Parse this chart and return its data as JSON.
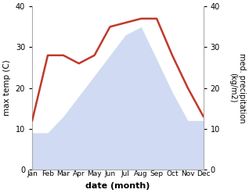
{
  "months": [
    "Jan",
    "Feb",
    "Mar",
    "Apr",
    "May",
    "Jun",
    "Jul",
    "Aug",
    "Sep",
    "Oct",
    "Nov",
    "Dec"
  ],
  "max_temp": [
    9,
    9,
    13,
    18,
    23,
    28,
    33,
    35,
    27,
    19,
    12,
    12
  ],
  "precipitation": [
    12,
    28,
    28,
    26,
    28,
    35,
    36,
    37,
    37,
    28,
    20,
    13
  ],
  "temp_fill_color": "#c8d4f0",
  "temp_fill_alpha": 0.85,
  "precip_color": "#c0392b",
  "xlabel": "date (month)",
  "ylabel_left": "max temp (C)",
  "ylabel_right": "med. precipitation\n(kg/m2)",
  "ylim": [
    0,
    40
  ],
  "yticks": [
    0,
    10,
    20,
    30,
    40
  ],
  "bg_color": "#ffffff",
  "spine_color": "#aaaaaa"
}
